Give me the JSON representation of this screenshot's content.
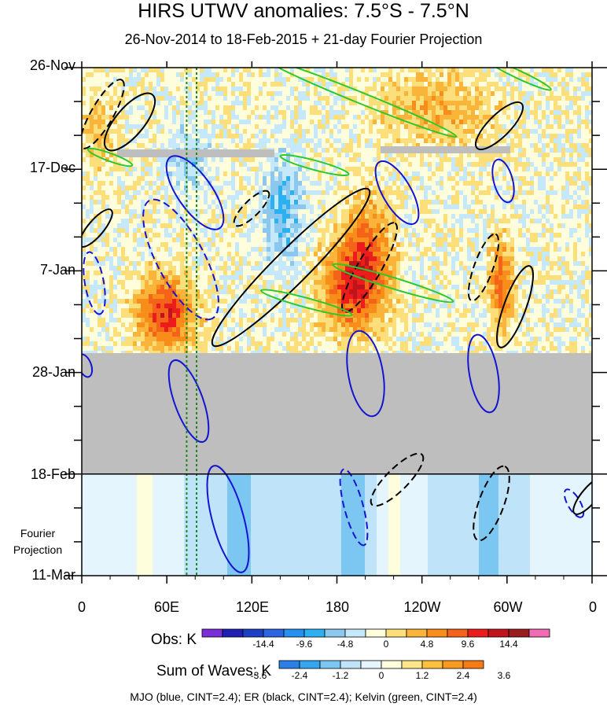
{
  "chart_data": {
    "type": "heatmap",
    "title": "HIRS UTWV anomalies: 7.5°S - 7.5°N",
    "subtitle": "26-Nov-2014 to 18-Feb-2015 + 21-day Fourier Projection",
    "x_tick_labels": [
      "0",
      "60E",
      "120E",
      "180",
      "120W",
      "60W",
      "0"
    ],
    "x_tick_values_deg_east": [
      0,
      60,
      120,
      180,
      240,
      300,
      360
    ],
    "y_tick_labels": [
      "26-Nov",
      "17-Dec",
      "7-Jan",
      "28-Jan",
      "18-Feb",
      "11-Mar"
    ],
    "y_range": [
      "2014-11-26",
      "2015-03-11"
    ],
    "observation_end": "2015-02-18",
    "missing_data_period": [
      "2015-01-24",
      "2015-02-18"
    ],
    "fourier_projection_label": [
      "Fourier",
      "Projection"
    ],
    "colorbars": [
      {
        "name": "Obs",
        "title": "Obs: K",
        "tick_labels": [
          "-14.4",
          "-9.6",
          "-4.8",
          "0",
          "4.8",
          "9.6",
          "14.4"
        ],
        "colors": [
          "#7b2fd8",
          "#1f1fb4",
          "#1c3fc4",
          "#2b66e0",
          "#2690f0",
          "#2bb0f2",
          "#8cc8ee",
          "#c6e8fb",
          "#fefedc",
          "#fcde7a",
          "#fbb43a",
          "#f98d1a",
          "#f5631a",
          "#ec1c1c",
          "#c0141c",
          "#9a1d1d",
          "#f06ab4"
        ]
      },
      {
        "name": "Sum of Waves",
        "title": "Sum of Waves: K",
        "tick_labels": [
          "-3.6",
          "-2.4",
          "-1.2",
          "0",
          "1.2",
          "2.4",
          "3.6"
        ],
        "colors": [
          "#2b80e8",
          "#34a6f0",
          "#7cc6f2",
          "#bfe3f8",
          "#e4f5fd",
          "#fefedc",
          "#fde68a",
          "#fcc03c",
          "#fb9a20",
          "#f77b14"
        ]
      }
    ],
    "vertical_reference_lines_deg_east": [
      74,
      81
    ],
    "contour_legend": "MJO (blue, CINT=2.4); ER (black, CINT=2.4); Kelvin (green, CINT=2.4)",
    "series": [
      {
        "name": "MJO",
        "color": "#1414d2"
      },
      {
        "name": "ER",
        "color": "#000000"
      },
      {
        "name": "Kelvin",
        "color": "#2cc82c"
      }
    ],
    "colors": {
      "missing": "#bebebe",
      "reference_line": "#1a8a1a"
    }
  }
}
